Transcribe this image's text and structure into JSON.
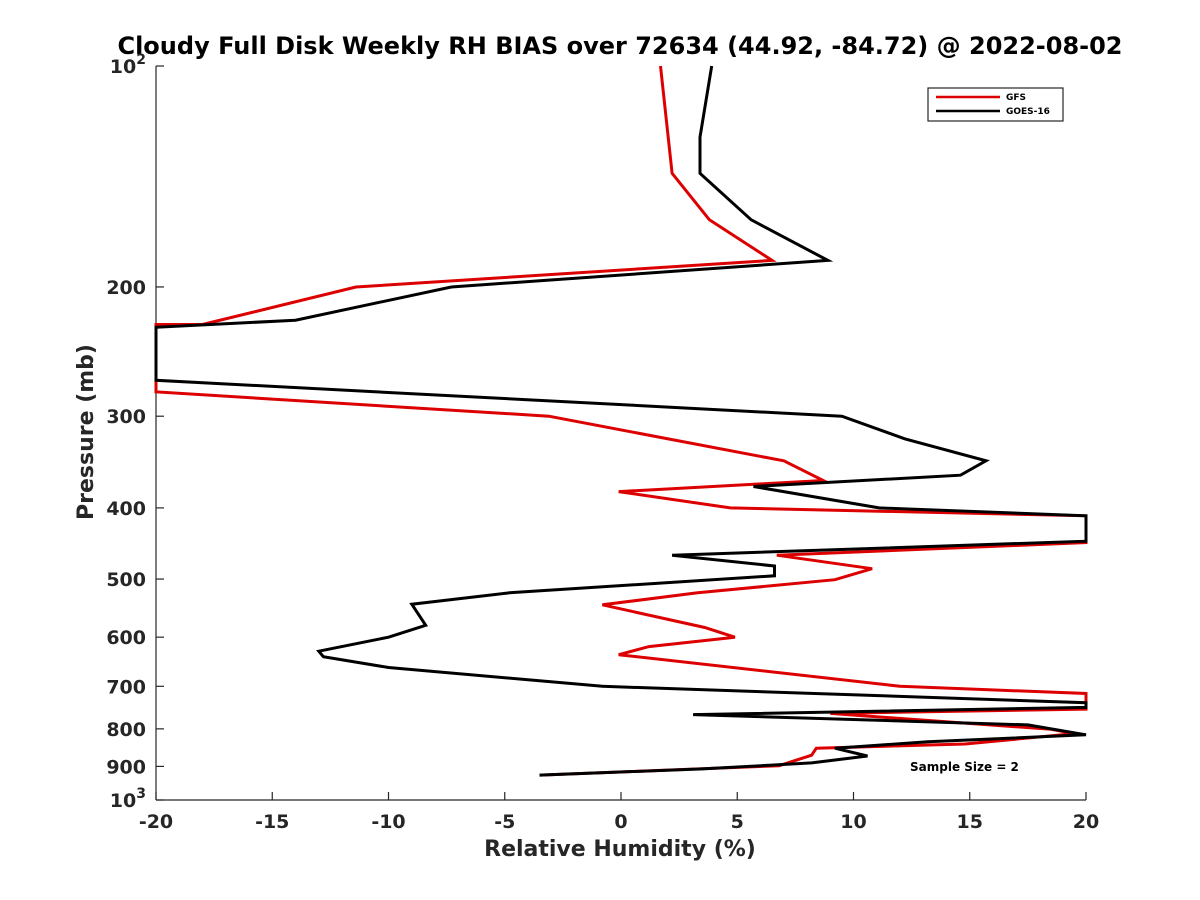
{
  "chart_data": {
    "type": "line",
    "title": "Cloudy Full Disk Weekly RH BIAS over 72634 (44.92, -84.72) @ 2022-08-02",
    "xlabel": "Relative Humidity (%)",
    "ylabel": "Pressure (mb)",
    "xlim": [
      -20,
      20
    ],
    "ylim": [
      100,
      1000
    ],
    "y_scale": "log",
    "y_reversed": true,
    "x_ticks": [
      -20,
      -15,
      -10,
      -5,
      0,
      5,
      10,
      15,
      20
    ],
    "x_tick_labels": [
      "-20",
      "-15",
      "-10",
      "-5",
      "0",
      "5",
      "10",
      "15",
      "20"
    ],
    "y_ticks": [
      100,
      200,
      300,
      400,
      500,
      600,
      700,
      800,
      900,
      1000
    ],
    "y_tick_labels": [
      "10²",
      "200",
      "300",
      "400",
      "500",
      "600",
      "700",
      "800",
      "900",
      "10³"
    ],
    "legend_position": "top-right",
    "grid": false,
    "annotation": "Sample Size = 2",
    "series": [
      {
        "name": "GFS",
        "color": "#dd0000",
        "points": [
          [
            1.7,
            100
          ],
          [
            2.2,
            140
          ],
          [
            3.8,
            162
          ],
          [
            6.5,
            184
          ],
          [
            -11.4,
            200
          ],
          [
            -18,
            225
          ],
          [
            -20,
            225
          ],
          [
            -20,
            278
          ],
          [
            -3.1,
            300
          ],
          [
            7,
            345
          ],
          [
            8.7,
            367
          ],
          [
            -0.1,
            380
          ],
          [
            4.7,
            400
          ],
          [
            20,
            410
          ],
          [
            20,
            446
          ],
          [
            6.7,
            464
          ],
          [
            10.8,
            484
          ],
          [
            9.2,
            501
          ],
          [
            3.3,
            522
          ],
          [
            -0.8,
            542
          ],
          [
            3.6,
            582
          ],
          [
            4.9,
            600
          ],
          [
            1.2,
            618
          ],
          [
            -0.1,
            634
          ],
          [
            12,
            700
          ],
          [
            20,
            716
          ],
          [
            20,
            752
          ],
          [
            9,
            762
          ],
          [
            18.5,
            801
          ],
          [
            19.5,
            812
          ],
          [
            14.8,
            839
          ],
          [
            8.4,
            850
          ],
          [
            8.2,
            869
          ],
          [
            6.8,
            898
          ],
          [
            -3.5,
            925
          ]
        ]
      },
      {
        "name": "GOES-16",
        "color": "#000000",
        "points": [
          [
            3.9,
            100
          ],
          [
            3.4,
            125
          ],
          [
            3.4,
            140
          ],
          [
            5.6,
            162
          ],
          [
            8.9,
            184
          ],
          [
            -7.3,
            200
          ],
          [
            -14,
            222
          ],
          [
            -20,
            227
          ],
          [
            -20,
            268
          ],
          [
            9.5,
            300
          ],
          [
            12.2,
            322
          ],
          [
            15.7,
            345
          ],
          [
            14.6,
            361
          ],
          [
            5.7,
            374
          ],
          [
            11.1,
            400
          ],
          [
            20,
            410
          ],
          [
            20,
            444
          ],
          [
            2.2,
            464
          ],
          [
            6.6,
            480
          ],
          [
            6.6,
            495
          ],
          [
            -4.8,
            522
          ],
          [
            -9,
            541
          ],
          [
            -8.4,
            578
          ],
          [
            -10,
            600
          ],
          [
            -13,
            627
          ],
          [
            -12.8,
            638
          ],
          [
            -10,
            660
          ],
          [
            -0.8,
            700
          ],
          [
            20,
            737
          ],
          [
            20,
            748
          ],
          [
            3.1,
            765
          ],
          [
            17.5,
            790
          ],
          [
            20,
            815
          ],
          [
            13.2,
            833
          ],
          [
            9.2,
            850
          ],
          [
            10.6,
            871
          ],
          [
            8.2,
            890
          ],
          [
            3.5,
            907
          ],
          [
            -3.5,
            925
          ]
        ]
      }
    ]
  }
}
